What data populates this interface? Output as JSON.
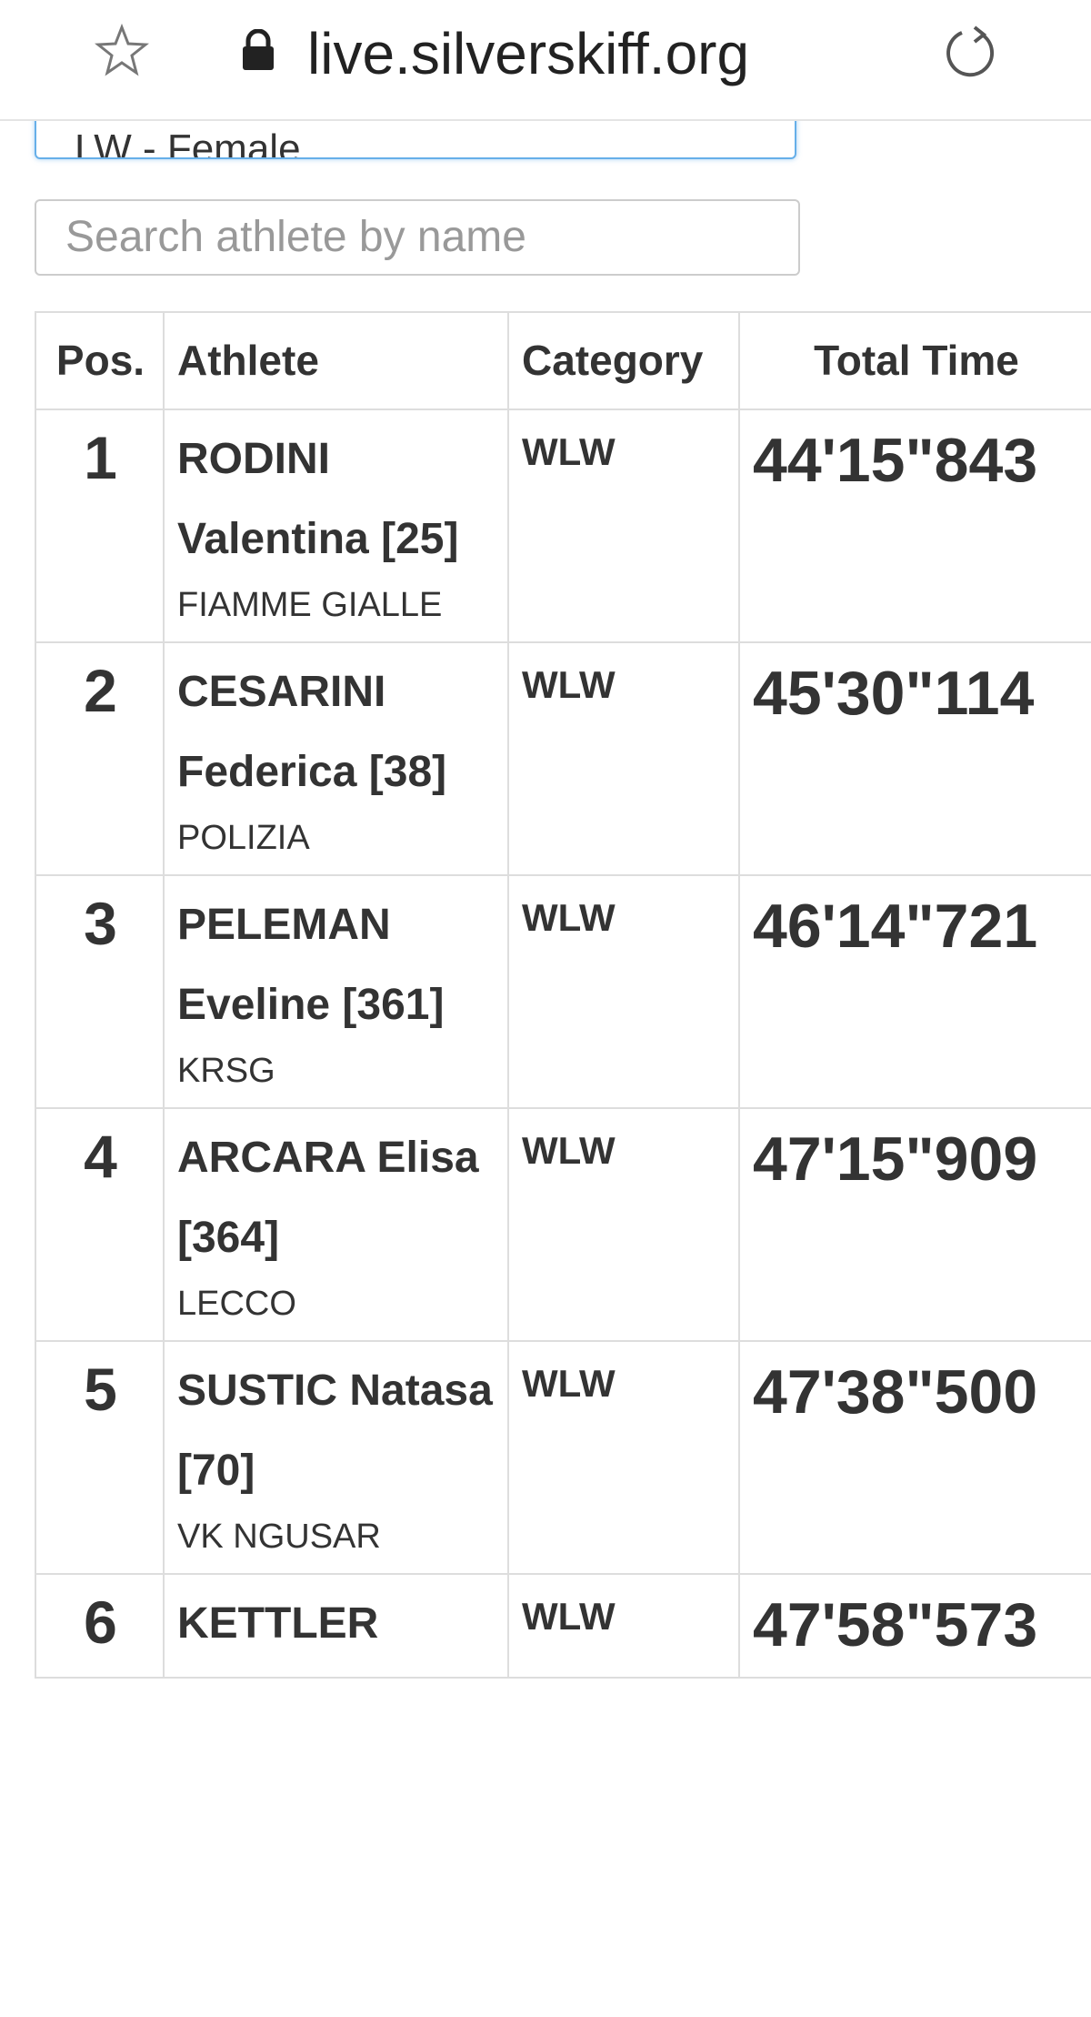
{
  "browser": {
    "url": "live.silverskiff.org"
  },
  "filter": {
    "selected": "LW - Female"
  },
  "search": {
    "placeholder": "Search athlete by name"
  },
  "table": {
    "headers": [
      "Pos.",
      "Athlete",
      "Category",
      "Total Time"
    ],
    "rows": [
      {
        "pos": "1",
        "athlete": "RODINI Valentina [25]",
        "club": "FIAMME GIALLE",
        "category": "WLW",
        "time": "44'15\"843"
      },
      {
        "pos": "2",
        "athlete": "CESARINI Federica [38]",
        "club": "POLIZIA",
        "category": "WLW",
        "time": "45'30\"114"
      },
      {
        "pos": "3",
        "athlete": "PELEMAN Eveline [361]",
        "club": "KRSG",
        "category": "WLW",
        "time": "46'14\"721"
      },
      {
        "pos": "4",
        "athlete": "ARCARA Elisa [364]",
        "club": "LECCO",
        "category": "WLW",
        "time": "47'15\"909"
      },
      {
        "pos": "5",
        "athlete": "SUSTIC Natasa [70]",
        "club": "VK NGUSAR",
        "category": "WLW",
        "time": "47'38\"500"
      },
      {
        "pos": "6",
        "athlete": "KETTLER",
        "category": "WLW",
        "time": "47'58\"573"
      }
    ]
  }
}
